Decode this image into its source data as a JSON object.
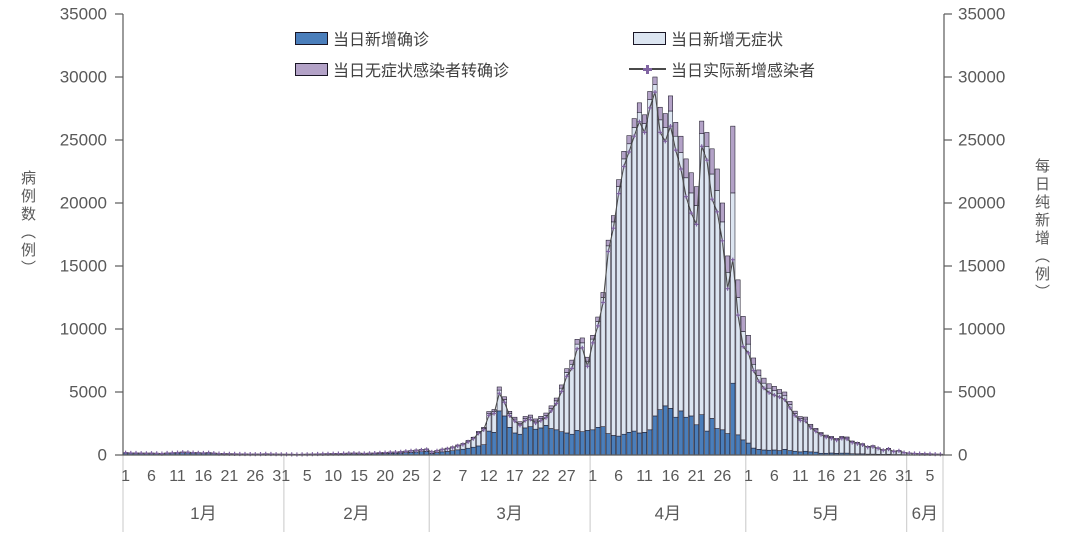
{
  "axes": {
    "y_left_label": "病例数（例）",
    "y_right_label": "每日纯新增（例）"
  },
  "chart_data": {
    "type": "bar",
    "subtype": "stacked-bar-with-line-overlay",
    "title": "",
    "ylim": [
      0,
      35000
    ],
    "yticks": [
      0,
      5000,
      10000,
      15000,
      20000,
      25000,
      30000,
      35000
    ],
    "grid": false,
    "legend_position": "top-center",
    "x_axis": {
      "months": [
        {
          "label": "1月",
          "days": 31
        },
        {
          "label": "2月",
          "days": 28
        },
        {
          "label": "3月",
          "days": 31
        },
        {
          "label": "4月",
          "days": 30
        },
        {
          "label": "5月",
          "days": 31
        },
        {
          "label": "6月",
          "days": 7
        }
      ],
      "tick_interval_days": 5,
      "tick_labels": [
        "1",
        "6",
        "11",
        "16",
        "21",
        "26",
        "31",
        "5",
        "10",
        "15",
        "20",
        "25",
        "2",
        "7",
        "12",
        "17",
        "22",
        "27",
        "1",
        "6",
        "11",
        "16",
        "21",
        "26",
        "1",
        "6",
        "11",
        "16",
        "21",
        "26",
        "31",
        "5"
      ]
    },
    "colors": {
      "confirmed": "#4A7EBB",
      "asymptomatic": "#DCE5F1",
      "converted": "#B3A2C7",
      "bar_outline": "#1A1626",
      "line": "#4A4A4A",
      "marker": "#8064A2",
      "axis_text": "#595959",
      "separator": "#C8C8C8"
    },
    "series": [
      {
        "name": "当日新增确诊",
        "type": "bar",
        "color": "#4A7EBB",
        "values": [
          150,
          130,
          125,
          120,
          110,
          115,
          100,
          95,
          130,
          135,
          160,
          185,
          175,
          160,
          145,
          135,
          150,
          120,
          95,
          85,
          80,
          70,
          68,
          65,
          60,
          55,
          60,
          70,
          68,
          55,
          48,
          35,
          30,
          28,
          30,
          38,
          45,
          50,
          55,
          62,
          68,
          75,
          80,
          88,
          95,
          88,
          80,
          88,
          100,
          112,
          125,
          138,
          150,
          162,
          188,
          212,
          238,
          262,
          288,
          130,
          200,
          250,
          280,
          340,
          410,
          460,
          540,
          620,
          720,
          820,
          1900,
          1800,
          3500,
          3100,
          2200,
          1750,
          1650,
          2150,
          2250,
          2050,
          2150,
          2350,
          2100,
          2000,
          1850,
          1750,
          1650,
          1950,
          1850,
          1950,
          2000,
          2200,
          2250,
          1700,
          1550,
          1500,
          1650,
          1800,
          1900,
          1750,
          1800,
          2000,
          3100,
          3600,
          3900,
          3700,
          3000,
          3500,
          3000,
          3100,
          2400,
          3200,
          1900,
          2900,
          2100,
          2000,
          1700,
          5700,
          1600,
          1200,
          950,
          550,
          450,
          400,
          380,
          400,
          350,
          450,
          350,
          300,
          250,
          300,
          250,
          230,
          140,
          140,
          160,
          130,
          150,
          150,
          100,
          90,
          90,
          70,
          70,
          60,
          50,
          60,
          40,
          40,
          25,
          20,
          18,
          16,
          15,
          12,
          10,
          10
        ]
      },
      {
        "name": "当日新增无症状",
        "type": "bar",
        "color": "#DCE5F1",
        "values": [
          40,
          35,
          35,
          30,
          30,
          35,
          30,
          25,
          30,
          35,
          40,
          45,
          45,
          40,
          35,
          35,
          40,
          30,
          25,
          25,
          20,
          20,
          17,
          15,
          15,
          15,
          15,
          20,
          17,
          15,
          12,
          20,
          20,
          17,
          20,
          22,
          25,
          30,
          35,
          38,
          42,
          45,
          50,
          52,
          55,
          52,
          50,
          52,
          60,
          68,
          75,
          82,
          90,
          98,
          112,
          128,
          142,
          158,
          172,
          120,
          150,
          200,
          240,
          280,
          350,
          410,
          560,
          730,
          1080,
          1280,
          1400,
          1650,
          1650,
          1300,
          1100,
          1100,
          850,
          750,
          750,
          650,
          750,
          800,
          1600,
          2300,
          3450,
          4800,
          5550,
          6850,
          7050,
          5450,
          7200,
          8400,
          10250,
          14900,
          16950,
          19800,
          21850,
          22900,
          24100,
          25450,
          24500,
          26200,
          26300,
          23000,
          22100,
          23600,
          22300,
          20500,
          19000,
          17700,
          17400,
          22300,
          22600,
          19400,
          18900,
          16500,
          12800,
          15100,
          10900,
          8600,
          7850,
          6650,
          5850,
          5300,
          4920,
          4700,
          4550,
          4250,
          3650,
          3000,
          2650,
          2550,
          2050,
          1770,
          1560,
          1360,
          1240,
          1120,
          1250,
          1200,
          950,
          860,
          760,
          580,
          630,
          490,
          350,
          440,
          260,
          310,
          175,
          130,
          112,
          104,
          85,
          78,
          60,
          50
        ]
      },
      {
        "name": "当日无症状感染者转确诊",
        "type": "bar",
        "color": "#B3A2C7",
        "values": [
          5,
          5,
          5,
          5,
          5,
          5,
          5,
          5,
          5,
          5,
          8,
          10,
          10,
          8,
          8,
          8,
          8,
          6,
          5,
          5,
          4,
          4,
          4,
          3,
          3,
          3,
          3,
          4,
          3,
          3,
          3,
          3,
          3,
          3,
          3,
          3,
          4,
          4,
          5,
          5,
          6,
          6,
          7,
          7,
          8,
          7,
          7,
          7,
          8,
          9,
          10,
          11,
          12,
          13,
          15,
          17,
          19,
          21,
          23,
          10,
          15,
          20,
          25,
          30,
          35,
          40,
          50,
          60,
          80,
          100,
          150,
          160,
          250,
          220,
          170,
          150,
          140,
          160,
          170,
          160,
          170,
          180,
          200,
          220,
          260,
          300,
          330,
          380,
          390,
          360,
          300,
          350,
          400,
          450,
          500,
          550,
          600,
          650,
          700,
          750,
          700,
          650,
          600,
          1000,
          1100,
          1200,
          1100,
          1300,
          1500,
          1600,
          1500,
          1000,
          1100,
          2000,
          1700,
          1500,
          1300,
          5300,
          1400,
          1200,
          700,
          500,
          450,
          400,
          350,
          350,
          300,
          300,
          250,
          180,
          150,
          160,
          140,
          120,
          90,
          80,
          80,
          70,
          80,
          80,
          60,
          50,
          50,
          40,
          40,
          30,
          25,
          30,
          20,
          20,
          12,
          10,
          8,
          8,
          6,
          6,
          5,
          5
        ]
      },
      {
        "name": "当日实际新增感染者",
        "type": "line",
        "color": "#4A4A4A",
        "marker": "plus",
        "marker_color": "#8064A2",
        "values": [
          185,
          160,
          155,
          145,
          135,
          145,
          125,
          115,
          155,
          165,
          192,
          220,
          210,
          192,
          172,
          162,
          182,
          144,
          115,
          105,
          96,
          86,
          81,
          77,
          72,
          67,
          72,
          86,
          82,
          67,
          57,
          52,
          47,
          42,
          47,
          57,
          66,
          76,
          85,
          95,
          104,
          114,
          123,
          133,
          142,
          133,
          123,
          133,
          152,
          171,
          190,
          209,
          228,
          247,
          285,
          323,
          361,
          399,
          437,
          240,
          335,
          430,
          495,
          590,
          725,
          830,
          1050,
          1290,
          1720,
          2000,
          3150,
          3290,
          4900,
          4180,
          3130,
          2700,
          2360,
          2740,
          2830,
          2540,
          2730,
          2970,
          3500,
          4080,
          5040,
          6250,
          6870,
          8420,
          8510,
          7040,
          8900,
          10250,
          12100,
          16150,
          18000,
          20750,
          22900,
          24050,
          25300,
          26450,
          25600,
          27550,
          28800,
          25600,
          24900,
          26100,
          24200,
          22700,
          20500,
          19200,
          18300,
          24500,
          23400,
          20300,
          19300,
          17000,
          13200,
          15500,
          11100,
          8600,
          8100,
          6700,
          5850,
          5300,
          4950,
          4750,
          4600,
          4400,
          3750,
          3120,
          2750,
          2690,
          2160,
          1880,
          1610,
          1420,
          1320,
          1180,
          1320,
          1270,
          990,
          900,
          800,
          610,
          660,
          520,
          375,
          470,
          280,
          330,
          188,
          140,
          122,
          112,
          94,
          84,
          65,
          55
        ]
      }
    ]
  }
}
